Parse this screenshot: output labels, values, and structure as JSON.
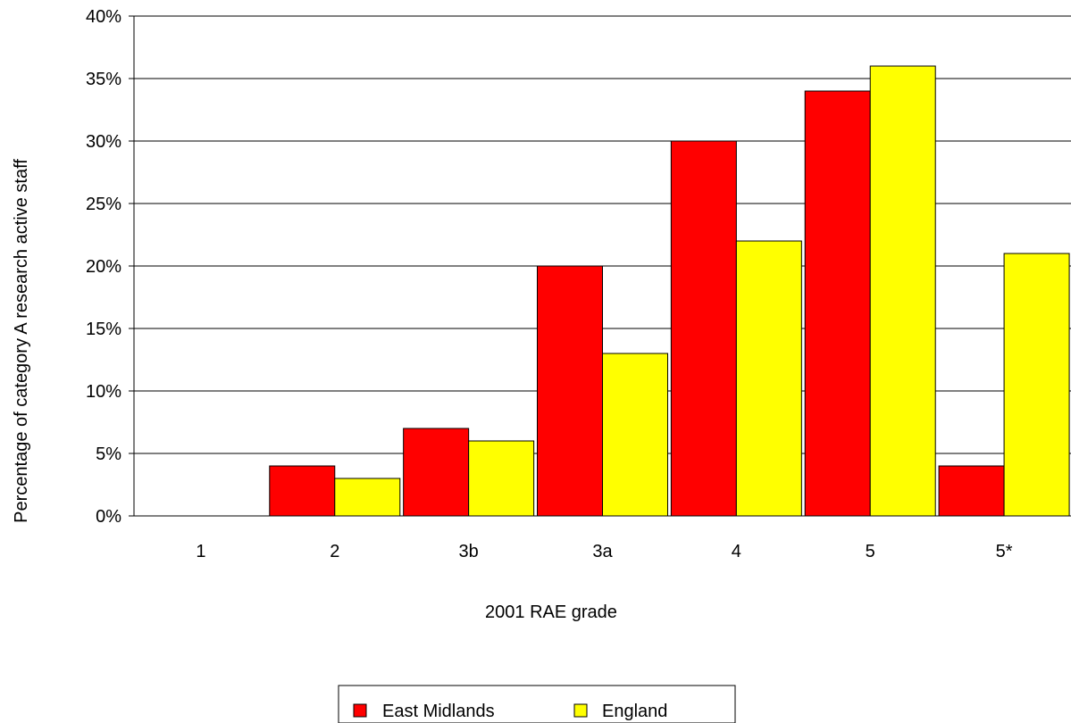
{
  "chart_data": {
    "type": "bar",
    "title": "",
    "xlabel": "2001 RAE grade",
    "ylabel": "Percentage of category A research active staff",
    "categories": [
      "1",
      "2",
      "3b",
      "3a",
      "4",
      "5",
      "5*"
    ],
    "series": [
      {
        "name": "East Midlands",
        "values": [
          0,
          4,
          7,
          20,
          30,
          34,
          4
        ],
        "color": "#ff0000"
      },
      {
        "name": "England",
        "values": [
          0,
          3,
          6,
          13,
          22,
          36,
          21
        ],
        "color": "#ffff00"
      }
    ],
    "ylim": [
      0,
      40
    ],
    "yticks": [
      0,
      5,
      10,
      15,
      20,
      25,
      30,
      35,
      40
    ],
    "ytick_labels": [
      "0%",
      "5%",
      "10%",
      "15%",
      "20%",
      "25%",
      "30%",
      "35%",
      "40%"
    ],
    "grid": true,
    "legend_position": "bottom-center"
  }
}
